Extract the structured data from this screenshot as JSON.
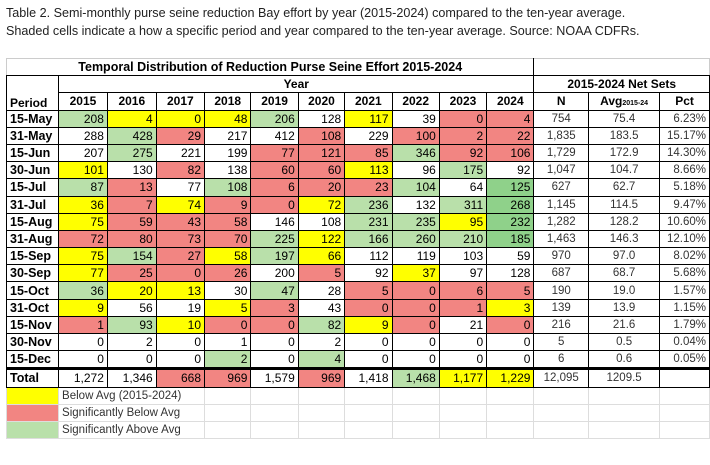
{
  "caption": [
    "Table 2. Semi-monthly purse seine reduction Bay effort by year (2015-2024) compared to the ten-year average.",
    "Shaded cells indicate a how a specific period and year compared to the ten-year average.  Source:  NOAA CDFRs."
  ],
  "table_title": "Temporal Distribution of Reduction Purse Seine Effort 2015-2024",
  "year_header": "Year",
  "net_sets_header": "2015-2024 Net Sets",
  "period_header": "Period",
  "years": [
    "2015",
    "2016",
    "2017",
    "2018",
    "2019",
    "2020",
    "2021",
    "2022",
    "2023",
    "2024"
  ],
  "stat_headers": {
    "n": "N",
    "avg": "Avg",
    "avg_sub": "2015-24",
    "pct": "Pct"
  },
  "colors": {
    "Y": "#ffff00",
    "R": "#f28582",
    "G": "#b9e0aa",
    "D": "#8fd18a"
  },
  "rows": [
    {
      "period": "15-May",
      "values": [
        "208",
        "4",
        "0",
        "48",
        "206",
        "128",
        "117",
        "39",
        "0",
        "4"
      ],
      "shade": [
        "G",
        "Y",
        "Y",
        "Y",
        "G",
        "W",
        "Y",
        "W",
        "R",
        "R"
      ],
      "n": "754",
      "avg": "75.4",
      "pct": "6.23%"
    },
    {
      "period": "31-May",
      "values": [
        "288",
        "428",
        "29",
        "217",
        "412",
        "108",
        "229",
        "100",
        "2",
        "22"
      ],
      "shade": [
        "W",
        "G",
        "R",
        "W",
        "W",
        "R",
        "W",
        "R",
        "R",
        "R"
      ],
      "n": "1,835",
      "avg": "183.5",
      "pct": "15.17%"
    },
    {
      "period": "15-Jun",
      "values": [
        "207",
        "275",
        "221",
        "199",
        "77",
        "121",
        "85",
        "346",
        "92",
        "106"
      ],
      "shade": [
        "W",
        "G",
        "W",
        "W",
        "R",
        "R",
        "R",
        "G",
        "R",
        "R"
      ],
      "n": "1,729",
      "avg": "172.9",
      "pct": "14.30%"
    },
    {
      "period": "30-Jun",
      "values": [
        "101",
        "130",
        "82",
        "138",
        "60",
        "60",
        "113",
        "96",
        "175",
        "92"
      ],
      "shade": [
        "Y",
        "W",
        "R",
        "W",
        "R",
        "R",
        "Y",
        "W",
        "G",
        "W"
      ],
      "n": "1,047",
      "avg": "104.7",
      "pct": "8.66%"
    },
    {
      "period": "15-Jul",
      "values": [
        "87",
        "13",
        "77",
        "108",
        "6",
        "20",
        "23",
        "104",
        "64",
        "125"
      ],
      "shade": [
        "G",
        "R",
        "W",
        "G",
        "R",
        "R",
        "R",
        "G",
        "W",
        "D"
      ],
      "n": "627",
      "avg": "62.7",
      "pct": "5.18%"
    },
    {
      "period": "31-Jul",
      "values": [
        "36",
        "7",
        "74",
        "9",
        "0",
        "72",
        "236",
        "132",
        "311",
        "268"
      ],
      "shade": [
        "Y",
        "R",
        "Y",
        "R",
        "R",
        "Y",
        "G",
        "W",
        "G",
        "D"
      ],
      "n": "1,145",
      "avg": "114.5",
      "pct": "9.47%"
    },
    {
      "period": "15-Aug",
      "values": [
        "75",
        "59",
        "43",
        "58",
        "146",
        "108",
        "231",
        "235",
        "95",
        "232"
      ],
      "shade": [
        "Y",
        "R",
        "R",
        "R",
        "W",
        "W",
        "G",
        "G",
        "Y",
        "D"
      ],
      "n": "1,282",
      "avg": "128.2",
      "pct": "10.60%"
    },
    {
      "period": "31-Aug",
      "values": [
        "72",
        "80",
        "73",
        "70",
        "225",
        "122",
        "166",
        "260",
        "210",
        "185"
      ],
      "shade": [
        "R",
        "R",
        "R",
        "R",
        "G",
        "Y",
        "G",
        "G",
        "G",
        "D"
      ],
      "n": "1,463",
      "avg": "146.3",
      "pct": "12.10%"
    },
    {
      "period": "15-Sep",
      "values": [
        "75",
        "154",
        "27",
        "58",
        "197",
        "66",
        "112",
        "119",
        "103",
        "59"
      ],
      "shade": [
        "Y",
        "G",
        "R",
        "Y",
        "G",
        "Y",
        "W",
        "W",
        "W",
        "W"
      ],
      "n": "970",
      "avg": "97.0",
      "pct": "8.02%"
    },
    {
      "period": "30-Sep",
      "values": [
        "77",
        "25",
        "0",
        "26",
        "200",
        "5",
        "92",
        "37",
        "97",
        "128"
      ],
      "shade": [
        "Y",
        "R",
        "R",
        "R",
        "W",
        "R",
        "W",
        "Y",
        "W",
        "W"
      ],
      "n": "687",
      "avg": "68.7",
      "pct": "5.68%"
    },
    {
      "period": "15-Oct",
      "values": [
        "36",
        "20",
        "13",
        "30",
        "47",
        "28",
        "5",
        "0",
        "6",
        "5"
      ],
      "shade": [
        "G",
        "Y",
        "Y",
        "W",
        "G",
        "W",
        "R",
        "R",
        "R",
        "R"
      ],
      "n": "190",
      "avg": "19.0",
      "pct": "1.57%"
    },
    {
      "period": "31-Oct",
      "values": [
        "9",
        "56",
        "19",
        "5",
        "3",
        "43",
        "0",
        "0",
        "1",
        "3"
      ],
      "shade": [
        "Y",
        "W",
        "W",
        "Y",
        "R",
        "W",
        "R",
        "R",
        "R",
        "Y"
      ],
      "n": "139",
      "avg": "13.9",
      "pct": "1.15%"
    },
    {
      "period": "15-Nov",
      "values": [
        "1",
        "93",
        "10",
        "0",
        "0",
        "82",
        "9",
        "0",
        "21",
        "0"
      ],
      "shade": [
        "R",
        "G",
        "Y",
        "R",
        "R",
        "G",
        "Y",
        "R",
        "W",
        "R"
      ],
      "n": "216",
      "avg": "21.6",
      "pct": "1.79%"
    },
    {
      "period": "30-Nov",
      "values": [
        "0",
        "2",
        "0",
        "1",
        "0",
        "2",
        "0",
        "0",
        "0",
        "0"
      ],
      "shade": [
        "W",
        "W",
        "W",
        "W",
        "W",
        "W",
        "W",
        "W",
        "W",
        "W"
      ],
      "n": "5",
      "avg": "0.5",
      "pct": "0.04%"
    },
    {
      "period": "15-Dec",
      "values": [
        "0",
        "0",
        "0",
        "2",
        "0",
        "4",
        "0",
        "0",
        "0",
        "0"
      ],
      "shade": [
        "W",
        "W",
        "W",
        "G",
        "W",
        "G",
        "W",
        "W",
        "W",
        "W"
      ],
      "n": "6",
      "avg": "0.6",
      "pct": "0.05%"
    }
  ],
  "total": {
    "period": "Total",
    "values": [
      "1,272",
      "1,346",
      "668",
      "969",
      "1,579",
      "969",
      "1,418",
      "1,468",
      "1,177",
      "1,229"
    ],
    "shade": [
      "W",
      "W",
      "R",
      "R",
      "W",
      "R",
      "W",
      "G",
      "Y",
      "Y"
    ],
    "n": "12,095",
    "avg": "1209.5",
    "pct": ""
  },
  "legend": [
    {
      "shade": "Y",
      "label": "Below Avg (2015-2024)"
    },
    {
      "shade": "R",
      "label": "Significantly Below Avg"
    },
    {
      "shade": "G",
      "label": "Significantly Above Avg"
    }
  ]
}
